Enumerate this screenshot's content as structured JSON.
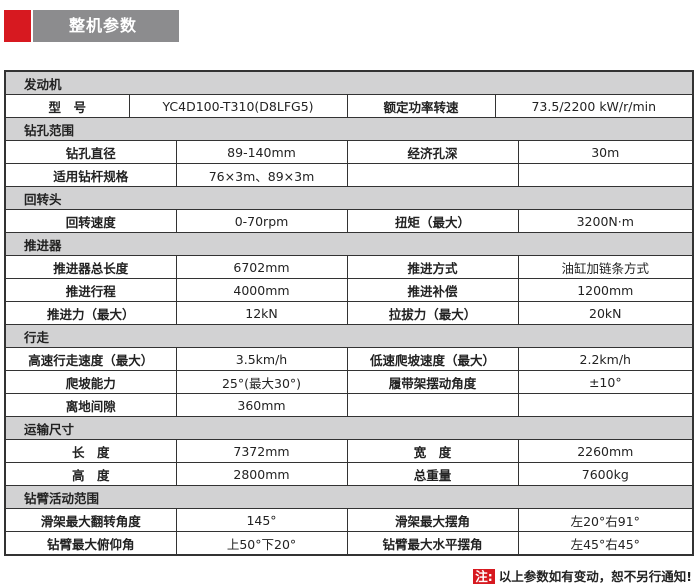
{
  "header": {
    "title": "整机参数",
    "accent": "#d71920"
  },
  "sections": [
    {
      "title": "发动机",
      "rows": [
        [
          "型　号",
          "YC4D100-T310(D8LFG5)",
          "额定功率转速",
          "73.5/2200 kW/r/min"
        ]
      ]
    },
    {
      "title": "钻孔范围",
      "rows": [
        [
          "钻孔直径",
          "89-140mm",
          "经济孔深",
          "30m"
        ],
        [
          "适用钻杆规格",
          "76×3m、89×3m",
          "",
          ""
        ]
      ]
    },
    {
      "title": "回转头",
      "rows": [
        [
          "回转速度",
          "0-70rpm",
          "扭矩（最大）",
          "3200N·m"
        ]
      ]
    },
    {
      "title": "推进器",
      "rows": [
        [
          "推进器总长度",
          "6702mm",
          "推进方式",
          "油缸加链条方式"
        ],
        [
          "推进行程",
          "4000mm",
          "推进补偿",
          "1200mm"
        ],
        [
          "推进力（最大）",
          "12kN",
          "拉拔力（最大）",
          "20kN"
        ]
      ]
    },
    {
      "title": "行走",
      "rows": [
        [
          "高速行走速度（最大）",
          "3.5km/h",
          "低速爬坡速度（最大）",
          "2.2km/h"
        ],
        [
          "爬坡能力",
          "25°(最大30°)",
          "履带架摆动角度",
          "±10°"
        ],
        [
          "离地间隙",
          "360mm",
          "",
          ""
        ]
      ]
    },
    {
      "title": "运输尺寸",
      "rows": [
        [
          "长　度",
          "7372mm",
          "宽　度",
          "2260mm"
        ],
        [
          "高　度",
          "2800mm",
          "总重量",
          "7600kg"
        ]
      ]
    },
    {
      "title": "钻臂活动范围",
      "rows": [
        [
          "滑架最大翻转角度",
          "145°",
          "滑架最大摆角",
          "左20°右91°"
        ],
        [
          "钻臂最大俯仰角",
          "上50°下20°",
          "钻臂最大水平摆角",
          "左45°右45°"
        ]
      ]
    }
  ],
  "note": {
    "tag": "注:",
    "text": "以上参数如有变动，恕不另行通知!"
  }
}
